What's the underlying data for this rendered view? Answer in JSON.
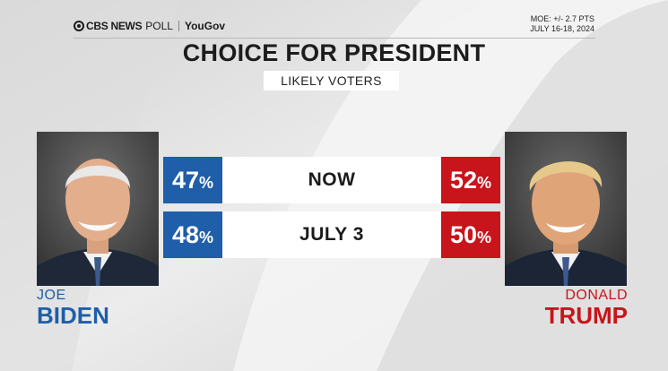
{
  "header": {
    "brand_cbs": "CBS NEWS",
    "brand_poll": "POLL",
    "brand_partner": "YouGov",
    "moe": "MOE: +/- 2.7 PTS",
    "dates": "JULY 16-18, 2024"
  },
  "chart_data": {
    "type": "table",
    "title": "CHOICE FOR PRESIDENT",
    "subtitle": "LIKELY VOTERS",
    "candidates": [
      {
        "first": "JOE",
        "last": "BIDEN",
        "color": "#1f5ea8"
      },
      {
        "first": "DONALD",
        "last": "TRUMP",
        "color": "#c8141b"
      }
    ],
    "rows": [
      {
        "label": "NOW",
        "biden": 47,
        "trump": 52
      },
      {
        "label": "JULY 3",
        "biden": 48,
        "trump": 50
      }
    ],
    "unit": "%"
  }
}
